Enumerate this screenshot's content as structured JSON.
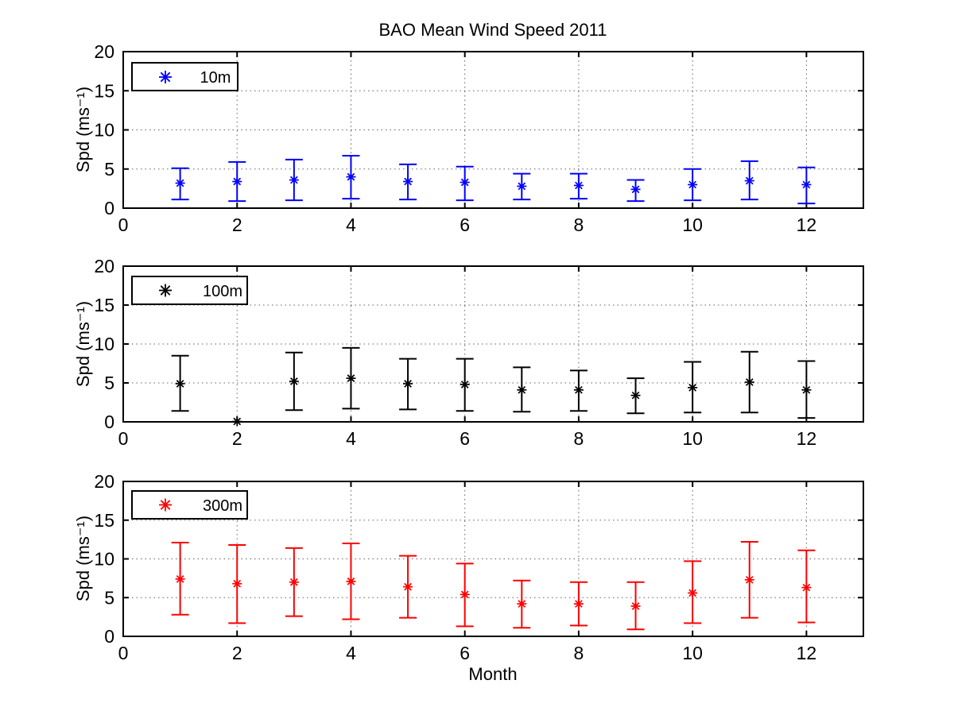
{
  "chart_data": {
    "type": "errorbar",
    "title": "BAO Mean Wind Speed  2011",
    "xlabel": "Month",
    "ylabel": "Spd (ms⁻¹)",
    "xlim": [
      0,
      13
    ],
    "ylim": [
      0,
      20
    ],
    "xticks": [
      0,
      2,
      4,
      6,
      8,
      10,
      12
    ],
    "yticks": [
      0,
      5,
      10,
      15,
      20
    ],
    "grid": true,
    "months": [
      1,
      2,
      3,
      4,
      5,
      6,
      7,
      8,
      9,
      10,
      11,
      12
    ],
    "series": [
      {
        "name": "10m",
        "color": "#0000FF",
        "mean": [
          3.2,
          3.4,
          3.6,
          4.0,
          3.4,
          3.3,
          2.8,
          2.9,
          2.4,
          3.0,
          3.5,
          3.0
        ],
        "lo": [
          1.1,
          0.9,
          1.0,
          1.2,
          1.1,
          1.0,
          1.1,
          1.2,
          0.9,
          1.0,
          1.1,
          0.6
        ],
        "hi": [
          5.1,
          5.9,
          6.2,
          6.7,
          5.6,
          5.3,
          4.4,
          4.4,
          3.6,
          5.0,
          6.0,
          5.2
        ]
      },
      {
        "name": "100m",
        "color": "#000000",
        "mean": [
          4.9,
          0.05,
          5.2,
          5.6,
          4.9,
          4.8,
          4.1,
          4.1,
          3.4,
          4.4,
          5.1,
          4.1
        ],
        "lo": [
          1.4,
          null,
          1.5,
          1.7,
          1.6,
          1.4,
          1.3,
          1.4,
          1.1,
          1.2,
          1.2,
          0.5
        ],
        "hi": [
          8.5,
          null,
          8.9,
          9.5,
          8.1,
          8.1,
          7.0,
          6.6,
          5.6,
          7.7,
          9.0,
          7.8
        ]
      },
      {
        "name": "300m",
        "color": "#FF0000",
        "mean": [
          7.4,
          6.8,
          7.0,
          7.1,
          6.4,
          5.4,
          4.2,
          4.2,
          3.9,
          5.6,
          7.3,
          6.3
        ],
        "lo": [
          2.8,
          1.7,
          2.6,
          2.2,
          2.4,
          1.3,
          1.1,
          1.4,
          0.9,
          1.7,
          2.4,
          1.8
        ],
        "hi": [
          12.1,
          11.8,
          11.4,
          12.0,
          10.4,
          9.4,
          7.2,
          7.0,
          7.0,
          9.7,
          12.2,
          11.1
        ]
      }
    ]
  }
}
